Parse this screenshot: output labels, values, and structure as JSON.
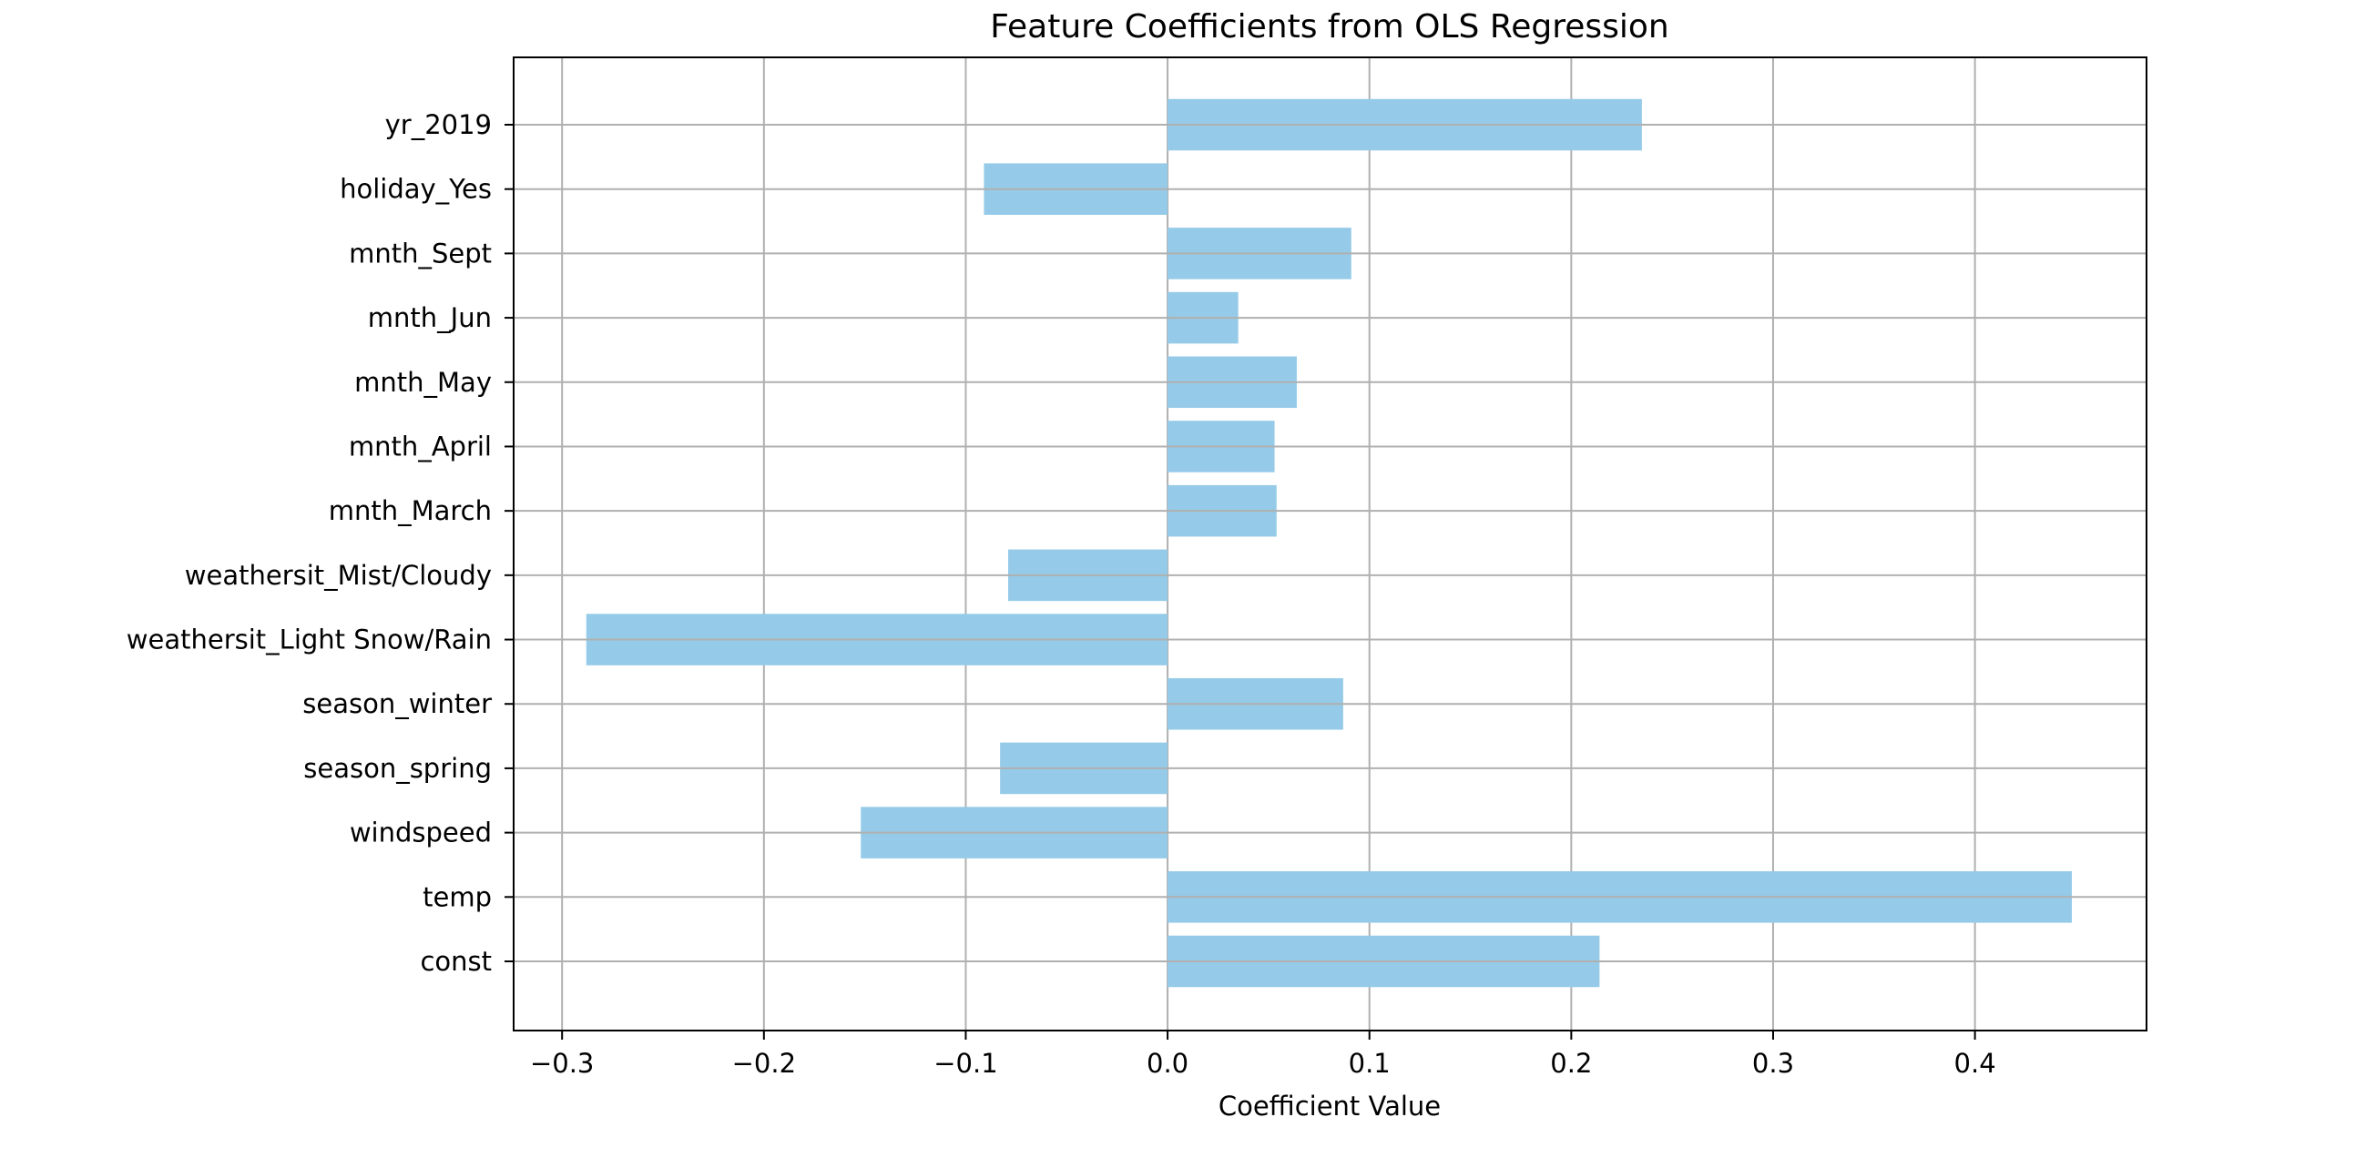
{
  "chart_data": {
    "type": "bar",
    "orientation": "horizontal",
    "title": "Feature Coefficients from OLS Regression",
    "xlabel": "Coefficient Value",
    "ylabel": "",
    "categories": [
      "const",
      "temp",
      "windspeed",
      "season_spring",
      "season_winter",
      "weathersit_Light Snow/Rain",
      "weathersit_Mist/Cloudy",
      "mnth_March",
      "mnth_April",
      "mnth_May",
      "mnth_Jun",
      "mnth_Sept",
      "holiday_Yes",
      "yr_2019"
    ],
    "values": [
      0.214,
      0.448,
      -0.152,
      -0.083,
      0.087,
      -0.288,
      -0.079,
      0.054,
      0.053,
      0.064,
      0.035,
      0.091,
      -0.091,
      0.235
    ],
    "x_ticks": [
      -0.3,
      -0.2,
      -0.1,
      0.0,
      0.1,
      0.2,
      0.3,
      0.4
    ],
    "x_tick_labels": [
      "−0.3",
      "−0.2",
      "−0.1",
      "0.0",
      "0.1",
      "0.2",
      "0.3",
      "0.4"
    ],
    "xlim": [
      -0.324,
      0.485
    ],
    "grid": true,
    "bar_color": "#95cbe8"
  }
}
